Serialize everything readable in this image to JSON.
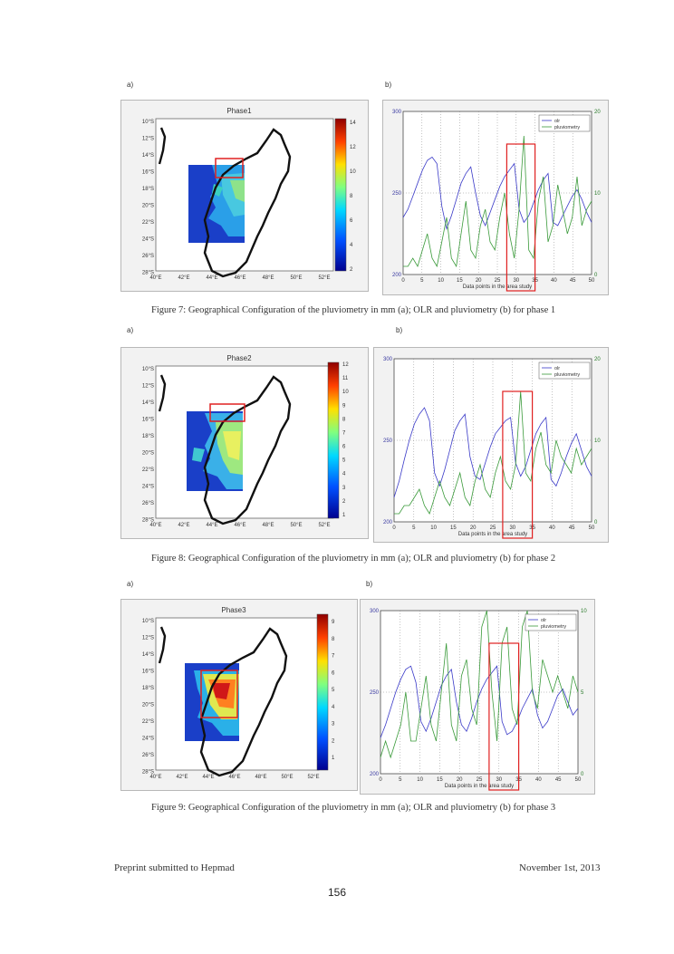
{
  "figures": [
    {
      "panel_a_label": "a)",
      "panel_b_label": "b)",
      "map": {
        "title": "Phase1",
        "lat_labels": [
          "10°S",
          "12°S",
          "14°S",
          "16°S",
          "18°S",
          "20°S",
          "22°S",
          "24°S",
          "26°S",
          "28°S"
        ],
        "lon_labels": [
          "40°E",
          "42°E",
          "44°E",
          "46°E",
          "48°E",
          "50°E",
          "52°E"
        ],
        "colorbar_ticks": [
          "14",
          "12",
          "10",
          "8",
          "6",
          "4",
          "2"
        ]
      },
      "chart_data": {
        "type": "line",
        "xlabel": "Data points in the area study",
        "x_ticks": [
          "0",
          "5",
          "10",
          "15",
          "20",
          "25",
          "30",
          "35",
          "40",
          "45",
          "50"
        ],
        "y_left_ticks": [
          "300",
          "250",
          "200"
        ],
        "y_right_ticks": [
          "20",
          "10",
          "0"
        ],
        "ylim_left": [
          200,
          300
        ],
        "ylim_right": [
          0,
          20
        ],
        "legend": [
          "olr",
          "pluviometry"
        ],
        "series": [
          {
            "name": "olr",
            "values": [
              235,
              240,
              248,
              256,
              264,
              270,
              272,
              268,
              242,
              228,
              236,
              246,
              256,
              262,
              266,
              250,
              236,
              230,
              238,
              246,
              254,
              260,
              264,
              268,
              240,
              232,
              236,
              244,
              252,
              258,
              262,
              232,
              230,
              236,
              242,
              248,
              252,
              246,
              238,
              232
            ]
          },
          {
            "name": "pluviometry",
            "values": [
              1,
              1,
              2,
              1,
              3,
              5,
              2,
              1,
              4,
              7,
              2,
              1,
              5,
              9,
              3,
              2,
              6,
              8,
              4,
              3,
              7,
              10,
              5,
              2,
              8,
              17,
              3,
              2,
              9,
              12,
              4,
              6,
              11,
              8,
              5,
              7,
              12,
              6,
              8,
              9
            ]
          }
        ]
      },
      "caption": "Figure 7: Geographical Configuration of the pluviometry in mm (a); OLR and pluviometry (b) for phase 1"
    },
    {
      "panel_a_label": "a)",
      "panel_b_label": "b)",
      "map": {
        "title": "Phase2",
        "lat_labels": [
          "10°S",
          "12°S",
          "14°S",
          "16°S",
          "18°S",
          "20°S",
          "22°S",
          "24°S",
          "26°S",
          "28°S"
        ],
        "lon_labels": [
          "40°E",
          "42°E",
          "44°E",
          "46°E",
          "48°E",
          "50°E",
          "52°E"
        ],
        "colorbar_ticks": [
          "12",
          "11",
          "10",
          "9",
          "8",
          "7",
          "6",
          "5",
          "4",
          "3",
          "2",
          "1"
        ]
      },
      "chart_data": {
        "type": "line",
        "xlabel": "Data points in the area study",
        "x_ticks": [
          "0",
          "5",
          "10",
          "15",
          "20",
          "25",
          "30",
          "35",
          "40",
          "45",
          "50"
        ],
        "y_left_ticks": [
          "300",
          "250",
          "200"
        ],
        "y_right_ticks": [
          "20",
          "10",
          "0"
        ],
        "ylim_left": [
          200,
          300
        ],
        "ylim_right": [
          0,
          20
        ],
        "legend": [
          "olr",
          "pluviometry"
        ],
        "series": [
          {
            "name": "olr",
            "values": [
              215,
              225,
              238,
              250,
              260,
              266,
              270,
              262,
              230,
              222,
              232,
              244,
              256,
              262,
              266,
              240,
              228,
              226,
              236,
              246,
              254,
              258,
              262,
              264,
              236,
              228,
              234,
              244,
              254,
              260,
              264,
              226,
              222,
              230,
              240,
              248,
              254,
              244,
              234,
              228
            ]
          },
          {
            "name": "pluviometry",
            "values": [
              1,
              1,
              2,
              2,
              3,
              4,
              2,
              1,
              3,
              5,
              3,
              2,
              4,
              6,
              3,
              2,
              5,
              7,
              4,
              3,
              6,
              8,
              5,
              4,
              7,
              16,
              6,
              5,
              9,
              11,
              7,
              6,
              10,
              8,
              7,
              6,
              9,
              7,
              8,
              9
            ]
          }
        ]
      },
      "caption": "Figure 8: Geographical Configuration of the pluviometry in mm (a); OLR and pluviometry (b) for phase 2"
    },
    {
      "panel_a_label": "a)",
      "panel_b_label": "b)",
      "map": {
        "title": "Phase3",
        "lat_labels": [
          "10°S",
          "12°S",
          "14°S",
          "16°S",
          "18°S",
          "20°S",
          "22°S",
          "24°S",
          "26°S",
          "28°S"
        ],
        "lon_labels": [
          "40°E",
          "42°E",
          "44°E",
          "46°E",
          "48°E",
          "50°E",
          "52°E"
        ],
        "colorbar_ticks": [
          "9",
          "8",
          "7",
          "6",
          "5",
          "4",
          "3",
          "2",
          "1"
        ]
      },
      "chart_data": {
        "type": "line",
        "xlabel": "Data points in the area study",
        "x_ticks": [
          "0",
          "5",
          "10",
          "15",
          "20",
          "25",
          "30",
          "35",
          "40",
          "45",
          "50"
        ],
        "y_left_ticks": [
          "300",
          "250",
          "200"
        ],
        "y_right_ticks": [
          "10",
          "5",
          "0"
        ],
        "ylim_left": [
          200,
          300
        ],
        "ylim_right": [
          0,
          10
        ],
        "legend": [
          "olr",
          "pluviometry"
        ],
        "series": [
          {
            "name": "olr",
            "values": [
              222,
              230,
              240,
              250,
              258,
              264,
              266,
              256,
              232,
              226,
              234,
              244,
              254,
              260,
              264,
              244,
              230,
              226,
              234,
              244,
              252,
              258,
              262,
              266,
              232,
              224,
              226,
              232,
              240,
              246,
              252,
              236,
              228,
              232,
              240,
              248,
              252,
              244,
              236,
              240
            ]
          },
          {
            "name": "pluviometry",
            "values": [
              1,
              2,
              1,
              2,
              3,
              5,
              2,
              2,
              4,
              6,
              3,
              2,
              5,
              8,
              3,
              2,
              6,
              7,
              4,
              3,
              9,
              10,
              5,
              2,
              8,
              9,
              4,
              3,
              9,
              10,
              5,
              4,
              7,
              6,
              5,
              6,
              5,
              4,
              6,
              5
            ]
          }
        ]
      },
      "caption": "Figure 9: Geographical Configuration of the pluviometry in mm (a); OLR and pluviometry (b) for phase 3"
    }
  ],
  "footer": {
    "left": "Preprint submitted to Hepmad",
    "right": "November 1st, 2013",
    "page_number": "156"
  }
}
